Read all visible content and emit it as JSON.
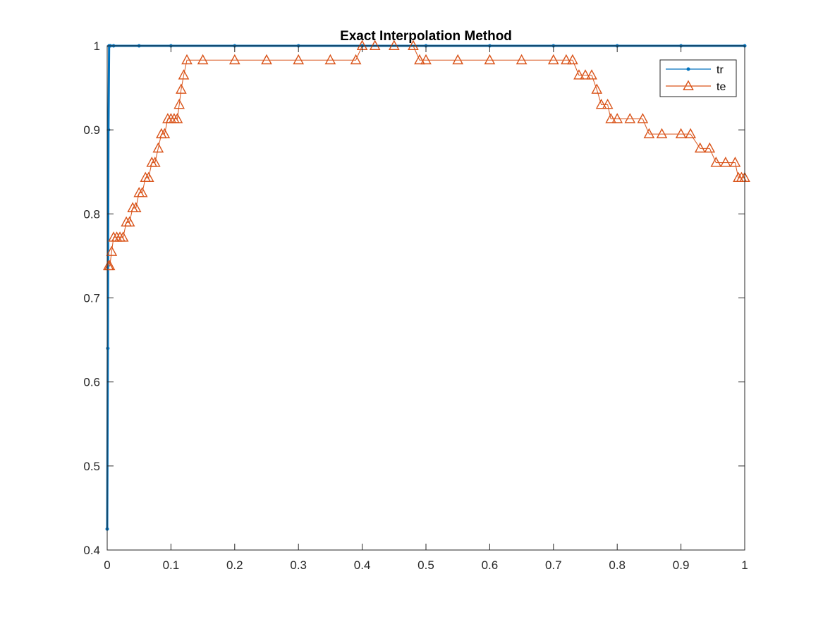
{
  "chart_data": {
    "type": "line",
    "title": "Exact Interpolation Method",
    "xlabel": "",
    "ylabel": "",
    "xlim": [
      0,
      1
    ],
    "ylim": [
      0.4,
      1
    ],
    "xticks": [
      "0",
      "0.1",
      "0.2",
      "0.3",
      "0.4",
      "0.5",
      "0.6",
      "0.7",
      "0.8",
      "0.9",
      "1"
    ],
    "yticks": [
      "0.4",
      "0.5",
      "0.6",
      "0.7",
      "0.8",
      "0.9",
      "1"
    ],
    "grid": false,
    "legend_position": "top-right",
    "series": [
      {
        "name": "tr",
        "color": "#0072BD",
        "marker": "dot",
        "x": [
          0,
          0.001,
          0.002,
          0.003,
          0.005,
          0.01,
          0.05,
          0.1,
          0.2,
          0.3,
          0.4,
          0.5,
          0.6,
          0.7,
          0.8,
          0.9,
          1.0
        ],
        "y": [
          0.425,
          0.64,
          0.9,
          1.0,
          1.0,
          1.0,
          1.0,
          1.0,
          1.0,
          1.0,
          1.0,
          1.0,
          1.0,
          1.0,
          1.0,
          1.0,
          1.0
        ]
      },
      {
        "name": "te",
        "color": "#D95319",
        "marker": "triangle",
        "x": [
          0.002,
          0.004,
          0.007,
          0.01,
          0.015,
          0.02,
          0.025,
          0.03,
          0.035,
          0.04,
          0.045,
          0.05,
          0.055,
          0.06,
          0.065,
          0.07,
          0.075,
          0.08,
          0.085,
          0.09,
          0.095,
          0.1,
          0.105,
          0.11,
          0.113,
          0.116,
          0.12,
          0.125,
          0.15,
          0.2,
          0.25,
          0.3,
          0.35,
          0.39,
          0.4,
          0.42,
          0.45,
          0.48,
          0.49,
          0.5,
          0.55,
          0.6,
          0.65,
          0.7,
          0.72,
          0.73,
          0.74,
          0.75,
          0.76,
          0.768,
          0.775,
          0.785,
          0.79,
          0.8,
          0.82,
          0.84,
          0.85,
          0.87,
          0.9,
          0.915,
          0.93,
          0.945,
          0.955,
          0.97,
          0.985,
          0.99,
          0.995,
          1.0
        ],
        "y": [
          0.738,
          0.738,
          0.755,
          0.772,
          0.772,
          0.772,
          0.772,
          0.79,
          0.79,
          0.807,
          0.807,
          0.825,
          0.825,
          0.843,
          0.843,
          0.861,
          0.861,
          0.878,
          0.895,
          0.895,
          0.913,
          0.913,
          0.913,
          0.913,
          0.93,
          0.948,
          0.965,
          0.983,
          0.983,
          0.983,
          0.983,
          0.983,
          0.983,
          0.983,
          1.0,
          1.0,
          1.0,
          1.0,
          0.983,
          0.983,
          0.983,
          0.983,
          0.983,
          0.983,
          0.983,
          0.983,
          0.965,
          0.965,
          0.965,
          0.948,
          0.93,
          0.93,
          0.913,
          0.913,
          0.913,
          0.913,
          0.895,
          0.895,
          0.895,
          0.895,
          0.878,
          0.878,
          0.861,
          0.861,
          0.861,
          0.843,
          0.843,
          0.843
        ]
      }
    ]
  }
}
